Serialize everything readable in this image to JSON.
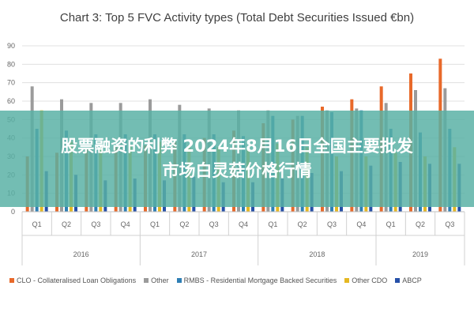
{
  "colors": {
    "CLO": "#e8692a",
    "Other": "#9b9b9b",
    "RMBS": "#2f7fb5",
    "OtherCDO": "#e5b823",
    "ABCP": "#2650a8",
    "grid": "#e0e0e0",
    "axis_text": "#666666",
    "overlay_bg": "#58b0a5"
  },
  "overlay": {
    "line1": "股票融资的利弊 2024年8月16日全国主要批发",
    "line2": "市场白灵菇价格行情"
  },
  "chart_data": {
    "type": "bar",
    "title": "Chart 3: Top 5 FVC Activity types (Total Debt Securities Issued €bn)",
    "ylim": [
      0,
      90
    ],
    "yticks": [
      "0",
      "10",
      "20",
      "30",
      "40",
      "50",
      "60",
      "70",
      "80",
      "90"
    ],
    "grid": true,
    "legend_position": "bottom",
    "categories": [
      "Q1",
      "Q2",
      "Q3",
      "Q4",
      "Q1",
      "Q2",
      "Q3",
      "Q4",
      "Q1",
      "Q2",
      "Q3",
      "Q4",
      "Q1",
      "Q2",
      "Q3"
    ],
    "years": [
      {
        "label": "2016",
        "count": 4
      },
      {
        "label": "2017",
        "count": 4
      },
      {
        "label": "2018",
        "count": 4
      },
      {
        "label": "2019",
        "count": 3
      }
    ],
    "series": [
      {
        "name": "CLO - Collateralised Loan Obligations",
        "key": "CLO",
        "values": [
          30,
          32,
          34,
          35,
          36,
          38,
          40,
          44,
          48,
          50,
          57,
          61,
          68,
          75,
          83
        ]
      },
      {
        "name": "Other",
        "key": "Other",
        "values": [
          68,
          61,
          59,
          59,
          61,
          58,
          56,
          55,
          55,
          52,
          55,
          56,
          59,
          66,
          67
        ]
      },
      {
        "name": "RMBS - Residential Mortgage Backed Securities",
        "key": "RMBS",
        "values": [
          45,
          44,
          42,
          42,
          42,
          42,
          42,
          41,
          52,
          52,
          54,
          55,
          45,
          43,
          45
        ]
      },
      {
        "name": "Other CDO",
        "key": "OtherCDO",
        "values": [
          55,
          38,
          35,
          36,
          38,
          36,
          35,
          34,
          37,
          35,
          30,
          30,
          32,
          30,
          35
        ]
      },
      {
        "name": "ABCP",
        "key": "ABCP",
        "values": [
          22,
          20,
          17,
          18,
          17,
          19,
          16,
          16,
          18,
          21,
          22,
          25,
          27,
          26,
          26
        ]
      }
    ]
  }
}
